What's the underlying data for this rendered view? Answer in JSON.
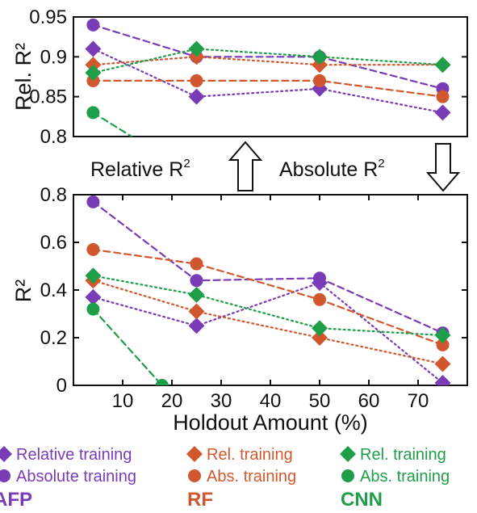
{
  "chart_data": [
    {
      "panel": "top",
      "type": "line",
      "ylabel": "Rel. R²",
      "xlabel": "",
      "xlim": [
        0,
        80
      ],
      "ylim": [
        0.8,
        0.95
      ],
      "yticks": [
        "0.95",
        "0.9",
        "0.85",
        "0.8"
      ],
      "ytick_values": [
        0.95,
        0.9,
        0.85,
        0.8
      ],
      "grid": false,
      "series": [
        {
          "group": "AFP",
          "name": "Relative training",
          "marker": "diamond",
          "line": "dotted",
          "color": "#7a3bb7",
          "x": [
            4,
            25,
            50,
            75
          ],
          "y": [
            0.91,
            0.85,
            0.86,
            0.83
          ]
        },
        {
          "group": "AFP",
          "name": "Absolute training",
          "marker": "circle",
          "line": "dashed",
          "color": "#7a3bb7",
          "x": [
            4,
            25,
            50,
            75
          ],
          "y": [
            0.94,
            0.9,
            0.9,
            0.86
          ]
        },
        {
          "group": "RF",
          "name": "Rel. training",
          "marker": "diamond",
          "line": "dotted",
          "color": "#d1582e",
          "x": [
            4,
            25,
            50,
            75
          ],
          "y": [
            0.89,
            0.9,
            0.89,
            0.89
          ]
        },
        {
          "group": "RF",
          "name": "Abs. training",
          "marker": "circle",
          "line": "dashed",
          "color": "#d1582e",
          "x": [
            4,
            25,
            50,
            75
          ],
          "y": [
            0.87,
            0.87,
            0.87,
            0.85
          ]
        },
        {
          "group": "CNN",
          "name": "Rel. training",
          "marker": "diamond",
          "line": "dotted",
          "color": "#1f9e49",
          "x": [
            4,
            25,
            50,
            75
          ],
          "y": [
            0.88,
            0.91,
            0.9,
            0.89
          ]
        },
        {
          "group": "CNN",
          "name": "Abs. training",
          "marker": "circle",
          "line": "dashed",
          "color": "#1f9e49",
          "x": [
            4,
            17
          ],
          "y": [
            0.83,
            0.78
          ]
        }
      ]
    },
    {
      "panel": "bottom",
      "type": "line",
      "ylabel": "R²",
      "xlabel": "Holdout Amount (%)",
      "xlim": [
        0,
        80
      ],
      "ylim": [
        0,
        0.8
      ],
      "xticks": [
        "10",
        "20",
        "30",
        "40",
        "50",
        "60",
        "70"
      ],
      "xtick_values": [
        10,
        20,
        30,
        40,
        50,
        60,
        70
      ],
      "yticks": [
        "0.8",
        "0.6",
        "0.4",
        "0.2",
        "0"
      ],
      "ytick_values": [
        0.8,
        0.6,
        0.4,
        0.2,
        0
      ],
      "grid": false,
      "series": [
        {
          "group": "AFP",
          "name": "Relative training",
          "marker": "diamond",
          "line": "dotted",
          "color": "#7a3bb7",
          "x": [
            4,
            25,
            50,
            75
          ],
          "y": [
            0.37,
            0.25,
            0.43,
            0.01
          ]
        },
        {
          "group": "AFP",
          "name": "Absolute training",
          "marker": "circle",
          "line": "dashed",
          "color": "#7a3bb7",
          "x": [
            4,
            25,
            50,
            75
          ],
          "y": [
            0.77,
            0.44,
            0.45,
            0.22
          ]
        },
        {
          "group": "RF",
          "name": "Rel. training",
          "marker": "diamond",
          "line": "dotted",
          "color": "#d1582e",
          "x": [
            4,
            25,
            50,
            75
          ],
          "y": [
            0.44,
            0.31,
            0.2,
            0.09
          ]
        },
        {
          "group": "RF",
          "name": "Abs. training",
          "marker": "circle",
          "line": "dashed",
          "color": "#d1582e",
          "x": [
            4,
            25,
            50,
            75
          ],
          "y": [
            0.57,
            0.51,
            0.36,
            0.17
          ]
        },
        {
          "group": "CNN",
          "name": "Rel. training",
          "marker": "diamond",
          "line": "dotted",
          "color": "#1f9e49",
          "x": [
            4,
            25,
            50,
            75
          ],
          "y": [
            0.46,
            0.38,
            0.24,
            0.21
          ]
        },
        {
          "group": "CNN",
          "name": "Abs. training",
          "marker": "circle",
          "line": "dashed",
          "color": "#1f9e49",
          "x": [
            4,
            18
          ],
          "y": [
            0.32,
            0.0
          ]
        }
      ]
    }
  ],
  "annotations": {
    "relative_label": "Relative R",
    "relative_sup": "2",
    "absolute_label": "Absolute R",
    "absolute_sup": "2"
  },
  "legend": {
    "groups": [
      {
        "title": "AFP",
        "color": "#7a3bb7",
        "items": [
          {
            "marker": "diamond",
            "label": "Relative training"
          },
          {
            "marker": "circle",
            "label": "Absolute training"
          }
        ]
      },
      {
        "title": "RF",
        "color": "#d1582e",
        "items": [
          {
            "marker": "diamond",
            "label": "Rel. training"
          },
          {
            "marker": "circle",
            "label": "Abs. training"
          }
        ]
      },
      {
        "title": "CNN",
        "color": "#1f9e49",
        "items": [
          {
            "marker": "diamond",
            "label": "Rel. training"
          },
          {
            "marker": "circle",
            "label": "Abs. training"
          }
        ]
      }
    ]
  }
}
